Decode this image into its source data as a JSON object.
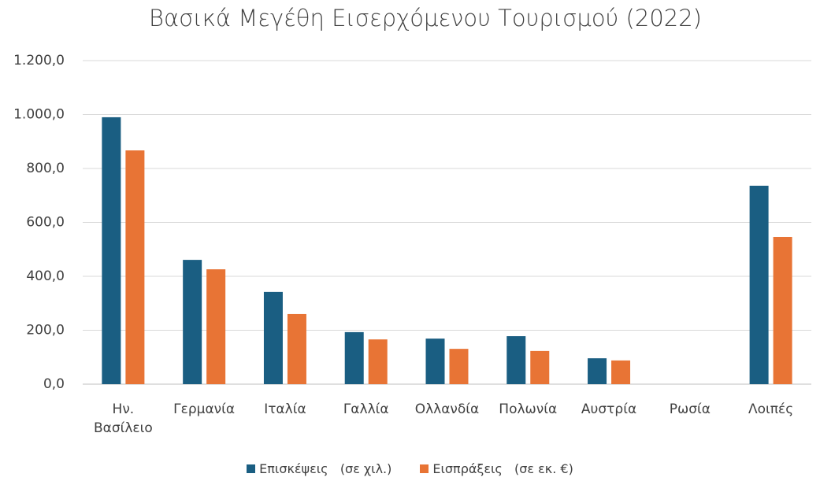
{
  "chart_data": {
    "type": "bar",
    "title": "Βασικά Μεγέθη Εισερχόμενου Τουρισμού (2022)",
    "categories": [
      "Ην. Βασίλειο",
      "Γερμανία",
      "Ιταλία",
      "Γαλλία",
      "Ολλανδία",
      "Πολωνία",
      "Αυστρία",
      "Ρωσία",
      "Λοιπές"
    ],
    "series": [
      {
        "name": "Επισκέψεις   (σε χιλ.)",
        "color": "#1a5e82",
        "values": [
          990,
          461,
          342,
          193,
          169,
          178,
          96,
          0,
          736
        ]
      },
      {
        "name": "Εισπράξεις   (σε εκ. €)",
        "color": "#e87435",
        "values": [
          867,
          426,
          260,
          166,
          131,
          123,
          88,
          0,
          546
        ]
      }
    ],
    "ylim": [
      0,
      1200
    ],
    "yticks": [
      {
        "value": 0,
        "label": "0,0"
      },
      {
        "value": 200,
        "label": "200,0"
      },
      {
        "value": 400,
        "label": "400,0"
      },
      {
        "value": 600,
        "label": "600,0"
      },
      {
        "value": 800,
        "label": "800,0"
      },
      {
        "value": 1000,
        "label": "1.000,0"
      },
      {
        "value": 1200,
        "label": "1.200,0"
      }
    ],
    "grid": true,
    "legend": "bottom"
  }
}
